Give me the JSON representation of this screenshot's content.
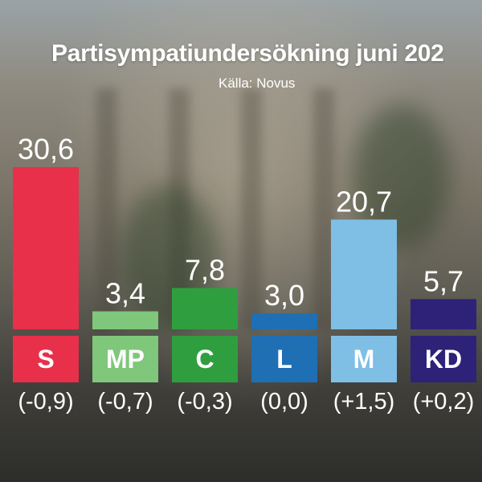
{
  "chart_data": {
    "type": "bar",
    "title": "Partisympatiundersökning juni 202",
    "subtitle": "Källa: Novus",
    "categories": [
      "S",
      "MP",
      "C",
      "L",
      "M",
      "KD"
    ],
    "values": [
      30.6,
      3.4,
      7.8,
      3.0,
      20.7,
      5.7
    ],
    "value_labels": [
      "30,6",
      "3,4",
      "7,8",
      "3,0",
      "20,7",
      "5,7"
    ],
    "changes": [
      "(-0,9)",
      "(-0,7)",
      "(-0,3)",
      "(0,0)",
      "(+1,5)",
      "(+0,2)"
    ],
    "colors": [
      "#e8304a",
      "#7fc77a",
      "#2f9e3f",
      "#1f6fb5",
      "#7fbfe6",
      "#2d2278"
    ],
    "ylim": [
      0,
      30.6
    ],
    "grid": false,
    "legend": "none"
  }
}
